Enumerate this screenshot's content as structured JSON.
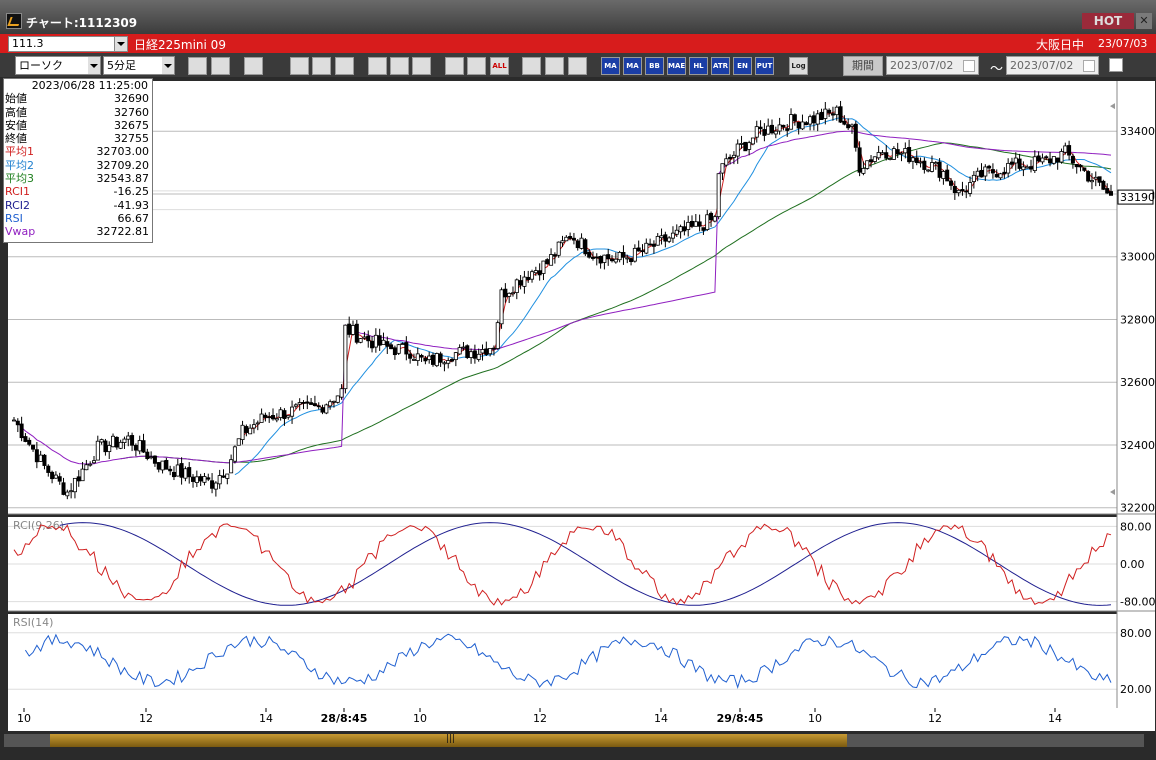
{
  "window": {
    "title": "チャート:1112309",
    "hot_label": "HOT",
    "close_label": "✕"
  },
  "header": {
    "code": "111.3",
    "symbol": "日経225mini 09",
    "market": "大阪日中",
    "date": "23/07/03"
  },
  "toolbar": {
    "chart_type": "ローソク",
    "interval": "5分足",
    "icons": [
      "search-icon",
      "crosshair-icon",
      "alert-icon",
      "table-icon",
      "compare-icon",
      "info-icon",
      "draw-line-icon",
      "pointer-icon",
      "undo-icon",
      "zoom-in-icon",
      "zoom-out-icon",
      "all-icon",
      "settings-icon",
      "tool-icon",
      "color-icon"
    ],
    "buttons": [
      "MA",
      "MA",
      "BB",
      "MAE",
      "HL",
      "ATR",
      "EN",
      "PUT",
      "Log"
    ],
    "period_label": "期間",
    "from_date": "2023/07/02",
    "tilde": "〜",
    "to_date": "2023/07/02"
  },
  "info": {
    "datetime": "2023/06/28  11:25:00",
    "rows": [
      {
        "label": "始値",
        "value": "32690",
        "color": "#000000"
      },
      {
        "label": "高値",
        "value": "32760",
        "color": "#000000"
      },
      {
        "label": "安値",
        "value": "32675",
        "color": "#000000"
      },
      {
        "label": "終値",
        "value": "32755",
        "color": "#000000"
      },
      {
        "label": "平均1",
        "value": "32703.00",
        "color": "#d02020"
      },
      {
        "label": "平均2",
        "value": "32709.20",
        "color": "#2080d0"
      },
      {
        "label": "平均3",
        "value": "32543.87",
        "color": "#208020"
      },
      {
        "label": "RCI1",
        "value": "-16.25",
        "color": "#d02020"
      },
      {
        "label": "RCI2",
        "value": "-41.93",
        "color": "#202090"
      },
      {
        "label": "RSI",
        "value": "66.67",
        "color": "#2060d0"
      },
      {
        "label": "Vwap",
        "value": "32722.81",
        "color": "#9020c0"
      }
    ]
  },
  "chart_data": [
    {
      "type": "candlestick",
      "y_ticks": [
        "33400",
        "33200",
        "33000",
        "32800",
        "32600",
        "32400",
        "32200"
      ],
      "ylim": [
        32180,
        33560
      ],
      "last_price_label": "33190",
      "x_ticks": [
        "10",
        "12",
        "14",
        "28/8:45",
        "10",
        "12",
        "14",
        "29/8:45",
        "10",
        "12",
        "14"
      ],
      "series": [
        {
          "name": "平均1",
          "color": "#d02020"
        },
        {
          "name": "平均2",
          "color": "#2090e0"
        },
        {
          "name": "平均3",
          "color": "#207020"
        },
        {
          "name": "Vwap",
          "color": "#9020c0"
        }
      ],
      "keypoints": [
        [
          0,
          32480
        ],
        [
          8,
          32330
        ],
        [
          14,
          32250
        ],
        [
          22,
          32390
        ],
        [
          30,
          32420
        ],
        [
          38,
          32340
        ],
        [
          46,
          32300
        ],
        [
          52,
          32280
        ],
        [
          56,
          32330
        ],
        [
          60,
          32440
        ],
        [
          66,
          32490
        ],
        [
          74,
          32510
        ],
        [
          80,
          32520
        ],
        [
          86,
          32570
        ],
        [
          87,
          32770
        ],
        [
          92,
          32740
        ],
        [
          98,
          32710
        ],
        [
          104,
          32700
        ],
        [
          108,
          32660
        ],
        [
          114,
          32690
        ],
        [
          122,
          32700
        ],
        [
          126,
          32720
        ],
        [
          128,
          32880
        ],
        [
          134,
          32940
        ],
        [
          140,
          32980
        ],
        [
          146,
          33070
        ],
        [
          152,
          33010
        ],
        [
          158,
          32990
        ],
        [
          164,
          33010
        ],
        [
          172,
          33060
        ],
        [
          180,
          33100
        ],
        [
          184,
          33120
        ],
        [
          185,
          33270
        ],
        [
          190,
          33340
        ],
        [
          196,
          33400
        ],
        [
          204,
          33430
        ],
        [
          210,
          33440
        ],
        [
          216,
          33460
        ],
        [
          220,
          33400
        ],
        [
          222,
          33290
        ],
        [
          228,
          33340
        ],
        [
          236,
          33320
        ],
        [
          244,
          33270
        ],
        [
          248,
          33200
        ],
        [
          254,
          33260
        ],
        [
          262,
          33290
        ],
        [
          270,
          33300
        ],
        [
          276,
          33330
        ],
        [
          282,
          33260
        ],
        [
          288,
          33190
        ]
      ]
    },
    {
      "type": "line",
      "title": "RCI(9,26)",
      "y_ticks": [
        "80.00",
        "0.00",
        "-80.00"
      ],
      "ylim": [
        -100,
        100
      ],
      "series": [
        {
          "name": "RCI1",
          "color": "#d02020"
        },
        {
          "name": "RCI2",
          "color": "#202090"
        }
      ]
    },
    {
      "type": "line",
      "title": "RSI(14)",
      "y_ticks": [
        "80.00",
        "20.00"
      ],
      "ylim": [
        0,
        100
      ],
      "series": [
        {
          "name": "RSI",
          "color": "#2060d0"
        }
      ]
    }
  ],
  "colors": {
    "background": "#ffffff",
    "grid": "#c8c8c8",
    "up_candle": "#ffffff",
    "down_candle": "#000000",
    "accent": "#d71c1c"
  }
}
